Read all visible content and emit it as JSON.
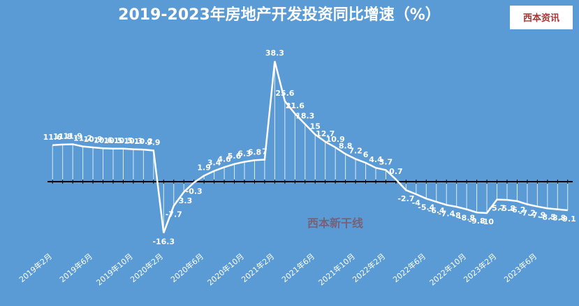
{
  "chart_data": {
    "type": "line",
    "title": "2019-2023年房地产开发投资同比增速（%）",
    "logo": "西本资讯",
    "watermark": "西本新干线",
    "categories": [
      "2019年2月",
      null,
      null,
      null,
      "2019年6月",
      null,
      null,
      null,
      "2019年10月",
      null,
      null,
      "2020年2月",
      null,
      null,
      null,
      "2020年6月",
      null,
      null,
      null,
      "2020年10月",
      null,
      null,
      "2021年2月",
      null,
      null,
      null,
      "2021年6月",
      null,
      null,
      null,
      "2021年10月",
      null,
      null,
      "2022年2月",
      null,
      null,
      null,
      "2022年6月",
      null,
      null,
      null,
      "2022年10月",
      null,
      null,
      "2023年2月",
      null,
      null,
      null,
      "2023年6月",
      null,
      null,
      null
    ],
    "values": [
      11.6,
      11.8,
      11.9,
      11.2,
      10.9,
      10.6,
      10.5,
      10.5,
      10.3,
      10.2,
      9.9,
      -16.3,
      -7.7,
      -3.3,
      -0.3,
      1.9,
      3.4,
      4.6,
      5.6,
      6.3,
      6.8,
      7,
      38.3,
      25.6,
      21.6,
      18.3,
      15,
      12.7,
      10.9,
      8.8,
      7.2,
      6,
      4.4,
      3.7,
      0.7,
      -2.7,
      -4,
      -5.4,
      -6.4,
      -7.4,
      -8,
      -8.8,
      -9.8,
      -10,
      -5.7,
      -5.8,
      -6.2,
      -7.2,
      -7.9,
      -8.5,
      -8.8,
      -9.1
    ],
    "color": "#ffffff",
    "ylim": [
      -20,
      40
    ]
  }
}
